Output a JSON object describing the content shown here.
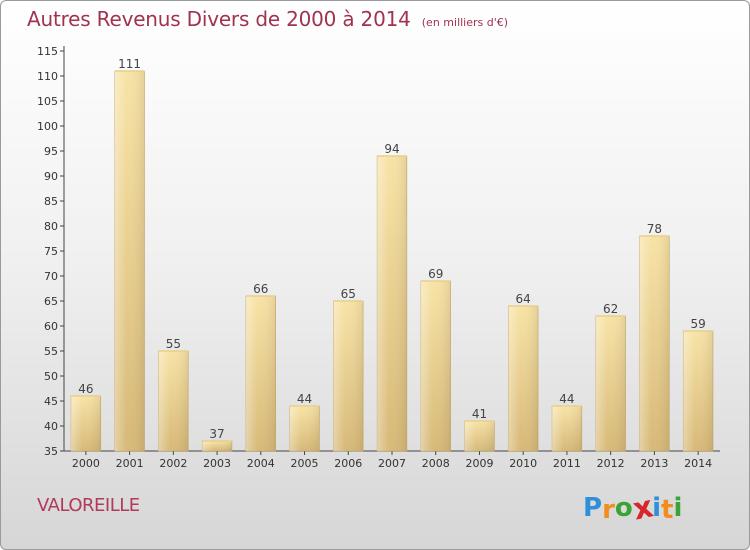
{
  "chart_data": {
    "type": "bar",
    "title": "Autres Revenus Divers de 2000 à 2014",
    "subtitle": "(en milliers d'€)",
    "categories": [
      "2000",
      "2001",
      "2002",
      "2003",
      "2004",
      "2005",
      "2006",
      "2007",
      "2008",
      "2009",
      "2010",
      "2011",
      "2012",
      "2013",
      "2014"
    ],
    "values": [
      46,
      111,
      55,
      37,
      66,
      44,
      65,
      94,
      69,
      41,
      64,
      44,
      62,
      78,
      59
    ],
    "ylim": [
      35,
      115
    ],
    "yticks": [
      35,
      40,
      45,
      50,
      55,
      60,
      65,
      70,
      75,
      80,
      85,
      90,
      95,
      100,
      105,
      110,
      115
    ],
    "grid": false,
    "legend": "none"
  },
  "place": "VALOREILLE",
  "logo": {
    "letters": [
      "P",
      "r",
      "o",
      "x",
      "i",
      "t",
      "i"
    ],
    "colors": [
      "#2f8fd8",
      "#f28c1e",
      "#3aa335",
      "#d9262b",
      "#2f8fd8",
      "#f28c1e",
      "#3aa335"
    ]
  },
  "colors": {
    "title": "#a0334f",
    "bar_light": "#f8e3a6",
    "bar_dark": "#d7b978",
    "bar_edge": "#c8a868"
  }
}
